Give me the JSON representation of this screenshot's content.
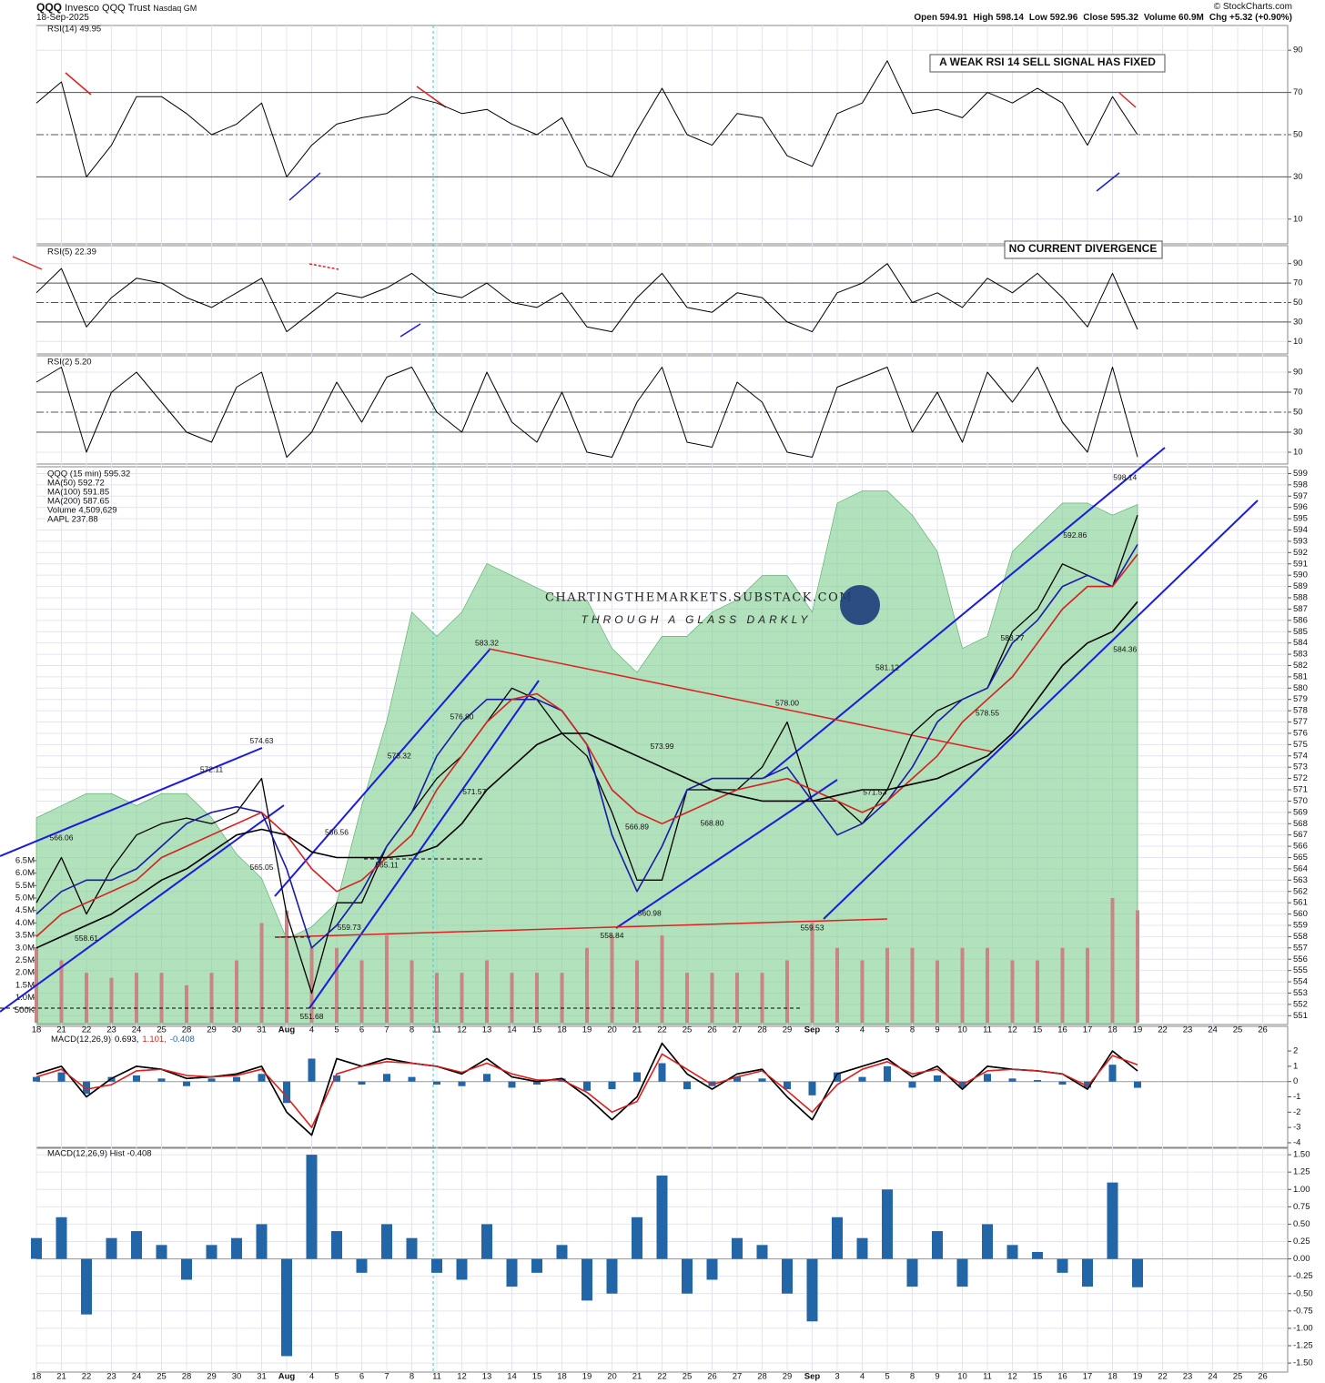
{
  "header": {
    "symbol": "QQQ",
    "name": "Invesco QQQ Trust",
    "exchange": "Nasdaq GM",
    "date": "18-Sep-2025",
    "quote": [
      "Open 594.91",
      "High 598.14",
      "Low 592.96",
      "Close 595.32",
      "Volume 60.9M",
      "Chg +5.32 (+0.90%)"
    ],
    "credit": "© StockCharts.com"
  },
  "annotations": {
    "rsi14_note": "A WEAK RSI 14 SELL SIGNAL HAS FIXED",
    "rsi5_note": "NO CURRENT DIVERGENCE",
    "watermark_title": "CHARTINGTHEMARKETS.SUBSTACK.COM",
    "watermark_subtitle": "THROUGH A GLASS DARKLY"
  },
  "chart_data": [
    {
      "type": "line",
      "title": "RSI(14) 49.95",
      "color": "#000000",
      "ylim": [
        0,
        100
      ],
      "yticks": [
        10,
        30,
        50,
        70,
        90
      ],
      "bands": [
        30,
        70
      ],
      "midline": 50,
      "grid": true,
      "values": [
        65,
        75,
        30,
        45,
        68,
        68,
        60,
        50,
        55,
        65,
        30,
        45,
        55,
        58,
        60,
        68,
        65,
        60,
        62,
        55,
        50,
        58,
        35,
        30,
        52,
        72,
        50,
        45,
        60,
        58,
        40,
        35,
        60,
        65,
        85,
        60,
        62,
        58,
        70,
        65,
        72,
        65,
        45,
        68,
        49.95,
        null,
        null,
        null,
        null,
        null
      ]
    },
    {
      "type": "line",
      "title": "RSI(5) 22.39",
      "color": "#000000",
      "ylim": [
        0,
        100
      ],
      "yticks": [
        10,
        30,
        50,
        70,
        90
      ],
      "bands": [
        30,
        70
      ],
      "midline": 50,
      "grid": true,
      "values": [
        60,
        85,
        25,
        55,
        75,
        70,
        55,
        45,
        60,
        75,
        20,
        40,
        60,
        55,
        65,
        80,
        60,
        55,
        70,
        50,
        45,
        60,
        25,
        20,
        55,
        80,
        45,
        40,
        60,
        55,
        30,
        20,
        60,
        70,
        90,
        50,
        60,
        45,
        75,
        60,
        80,
        55,
        25,
        80,
        22.39,
        null,
        null,
        null,
        null,
        null
      ]
    },
    {
      "type": "line",
      "title": "RSI(2) 5.20",
      "color": "#000000",
      "ylim": [
        0,
        100
      ],
      "yticks": [
        10,
        30,
        50,
        70,
        90
      ],
      "bands": [
        30,
        70
      ],
      "midline": 50,
      "grid": true,
      "values": [
        80,
        95,
        10,
        70,
        90,
        60,
        30,
        20,
        75,
        90,
        5,
        30,
        80,
        40,
        85,
        95,
        50,
        30,
        90,
        40,
        20,
        70,
        10,
        5,
        60,
        95,
        20,
        15,
        80,
        60,
        10,
        5,
        75,
        85,
        95,
        30,
        70,
        20,
        90,
        60,
        95,
        40,
        10,
        95,
        5.2,
        null,
        null,
        null,
        null,
        null
      ]
    },
    {
      "type": "line",
      "grid": true,
      "ylim": [
        550.3,
        599.6
      ],
      "yticks": [
        551,
        552,
        553,
        554,
        555,
        556,
        557,
        558,
        559,
        560,
        561,
        562,
        563,
        564,
        565,
        566,
        567,
        568,
        569,
        570,
        571,
        572,
        573,
        574,
        575,
        576,
        577,
        578,
        579,
        580,
        581,
        582,
        583,
        584,
        585,
        586,
        587,
        588,
        589,
        590,
        591,
        592,
        593,
        594,
        595,
        596,
        597,
        598,
        599
      ],
      "categories": [
        "18",
        "21",
        "22",
        "23",
        "24",
        "25",
        "28",
        "29",
        "30",
        "31",
        "Aug",
        "4",
        "5",
        "6",
        "7",
        "8",
        "11",
        "12",
        "13",
        "14",
        "15",
        "18",
        "19",
        "20",
        "21",
        "22",
        "25",
        "26",
        "27",
        "28",
        "29",
        "Sep",
        "3",
        "4",
        "5",
        "8",
        "9",
        "10",
        "11",
        "12",
        "15",
        "16",
        "17",
        "18",
        "19",
        "22",
        "23",
        "24",
        "25",
        "26"
      ],
      "series": [
        {
          "name": "QQQ (15 min) 595.32",
          "color": "#000000",
          "values": [
            561,
            565,
            560,
            564,
            567,
            568,
            568.5,
            568,
            569,
            572,
            560,
            553,
            561,
            561,
            566,
            569,
            572,
            574,
            577,
            580,
            579,
            576,
            574,
            569,
            563,
            563,
            571,
            571,
            571,
            573,
            577,
            570,
            570,
            568,
            571,
            576,
            578,
            579,
            580,
            585,
            587,
            591,
            590,
            589,
            595.32,
            null,
            null,
            null,
            null,
            null
          ]
        },
        {
          "name": "MA(50) 592.72",
          "color": "#1a1aa6",
          "values": [
            560,
            562,
            563,
            563,
            564,
            566,
            568,
            569,
            569.5,
            569,
            564,
            557,
            559,
            562,
            566,
            569,
            574,
            577,
            579,
            579,
            579,
            578,
            575,
            567,
            562,
            566,
            571,
            572,
            572,
            572,
            573,
            570,
            567,
            568,
            570,
            573,
            577,
            579,
            580,
            584,
            586,
            589,
            590,
            589,
            592.72,
            null,
            null,
            null,
            null,
            null
          ]
        },
        {
          "name": "MA(100) 591.85",
          "color": "#d42020",
          "values": [
            558,
            560,
            561,
            562,
            563,
            565,
            566,
            567,
            568,
            569,
            567,
            564,
            562,
            563,
            565,
            567,
            571,
            574,
            577,
            579,
            579.5,
            578,
            575,
            571,
            569,
            568,
            569,
            570,
            571,
            571.5,
            572,
            571,
            570,
            569,
            570,
            572,
            574,
            577,
            579,
            581,
            584,
            587,
            589,
            589,
            591.85,
            null,
            null,
            null,
            null,
            null
          ]
        },
        {
          "name": "MA(200) 587.65",
          "color": "#000000",
          "values": [
            557,
            558,
            559,
            560,
            561.5,
            563,
            564,
            565.5,
            567,
            567.5,
            567,
            565.5,
            565,
            565,
            565,
            565.2,
            566,
            568,
            571,
            573,
            575,
            576,
            576,
            575,
            574,
            573,
            572,
            571,
            570.5,
            570,
            570,
            570,
            570.5,
            571,
            571,
            571.5,
            572,
            573,
            574,
            576,
            579,
            582,
            584,
            585,
            587.65,
            null,
            null,
            null,
            null,
            null
          ]
        }
      ],
      "price_labels": [
        566.06,
        572.11,
        574.63,
        565.05,
        558.61,
        566.56,
        565.11,
        559.73,
        551.68,
        573.32,
        {
          "value": 576.8,
          "label": "576.80"
        },
        571.57,
        583.32,
        566.89,
        560.98,
        558.84,
        573.99,
        {
          "value": 568.8,
          "label": "568.80"
        },
        {
          "value": 578,
          "label": "578.00"
        },
        559.53,
        581.12,
        571.53,
        583.77,
        578.55,
        592.86,
        598.14,
        584.36
      ]
    },
    {
      "type": "bar",
      "name": "Volume 4,509,629",
      "color": "#c98585",
      "ylim": [
        0,
        22300000
      ],
      "yticks": [
        {
          "value": 500000,
          "label": "500K"
        },
        {
          "value": 1000000,
          "label": "1.0M"
        },
        {
          "value": 1500000,
          "label": "1.5M"
        },
        {
          "value": 2000000,
          "label": "2.0M"
        },
        {
          "value": 2500000,
          "label": "2.5M"
        },
        {
          "value": 3000000,
          "label": "3.0M"
        },
        {
          "value": 3500000,
          "label": "3.5M"
        },
        {
          "value": 4000000,
          "label": "4.0M"
        },
        {
          "value": 4500000,
          "label": "4.5M"
        },
        {
          "value": 5000000,
          "label": "5.0M"
        },
        {
          "value": 5500000,
          "label": "5.5M"
        },
        {
          "value": 6000000,
          "label": "6.0M"
        },
        {
          "value": 6500000,
          "label": "6.5M"
        }
      ],
      "values": [
        3000000,
        2500000,
        2000000,
        1800000,
        2000000,
        2000000,
        1500000,
        2000000,
        2500000,
        4000000,
        4500000,
        3000000,
        3000000,
        2500000,
        3500000,
        2500000,
        2000000,
        2000000,
        2500000,
        2000000,
        2000000,
        2000000,
        3000000,
        3500000,
        2500000,
        3500000,
        2000000,
        2000000,
        2000000,
        2000000,
        2500000,
        4000000,
        3000000,
        2500000,
        3000000,
        3000000,
        2500000,
        3000000,
        3000000,
        2500000,
        2500000,
        3000000,
        3000000,
        5000000,
        4509629,
        null,
        null,
        null,
        null,
        null
      ]
    },
    {
      "type": "area",
      "name": "AAPL 237.88",
      "color": "#7fcf8f",
      "ylim": [
        195,
        241
      ],
      "values": [
        212,
        213,
        214,
        214,
        213,
        214,
        214,
        212,
        209,
        207,
        202,
        203,
        205,
        213,
        220,
        229,
        227,
        229,
        233,
        232,
        231,
        230,
        230,
        226,
        224,
        227,
        227,
        229,
        230,
        232,
        232,
        229,
        238,
        239,
        239,
        237,
        234,
        226,
        227,
        234,
        236,
        238,
        238,
        237,
        237.88,
        null,
        null,
        null,
        null,
        null
      ]
    },
    {
      "type": "line",
      "title": "MACD(12,26,9)",
      "hist_label": "-0.408",
      "ylim": [
        -4.24,
        3.49
      ],
      "yticks": [
        -4,
        -3,
        -2,
        -1,
        0,
        1,
        2
      ],
      "series": [
        {
          "name": "0.693,",
          "color": "#000000",
          "values": [
            0.5,
            1,
            -1,
            0.2,
            1,
            0.8,
            0.2,
            0.3,
            0.5,
            1,
            -2,
            -3.5,
            1.5,
            1,
            1.5,
            1.2,
            1,
            0.5,
            1.5,
            0.3,
            0,
            0.2,
            -1,
            -2.5,
            -1,
            2.5,
            0.5,
            -0.5,
            0.5,
            0.8,
            -1,
            -2.5,
            0.5,
            1,
            1.5,
            0.3,
            1,
            -0.5,
            1,
            0.8,
            0.7,
            0.5,
            -0.5,
            2,
            0.693,
            null,
            null,
            null,
            null,
            null
          ]
        },
        {
          "name": "1.101,",
          "color": "#e02020",
          "values": [
            0.3,
            0.8,
            -0.5,
            -0.2,
            0.7,
            0.8,
            0.4,
            0.3,
            0.4,
            0.8,
            -1,
            -3,
            0.5,
            1,
            1.3,
            1.2,
            1,
            0.6,
            1.2,
            0.5,
            0.1,
            0.1,
            -0.7,
            -2,
            -1.3,
            1.8,
            0.8,
            -0.2,
            0.3,
            0.7,
            -0.6,
            -2,
            -0.2,
            0.8,
            1.3,
            0.5,
            0.8,
            -0.2,
            0.7,
            0.8,
            0.7,
            0.5,
            -0.3,
            1.7,
            1.101,
            null,
            null,
            null,
            null,
            null
          ]
        }
      ]
    },
    {
      "type": "bar",
      "title": "MACD(12,26,9) Hist -0.408",
      "color": "#2266a8",
      "grid": true,
      "ylim": [
        -1.63,
        1.58
      ],
      "yticks": [
        {
          "value": 1.5,
          "label": "1.50"
        },
        1.25,
        {
          "value": 1,
          "label": "1.00"
        },
        0.75,
        {
          "value": 0.5,
          "label": "0.50"
        },
        0.25,
        {
          "value": 0,
          "label": "0.00"
        },
        -0.25,
        {
          "value": -0.5,
          "label": "-0.50"
        },
        -0.75,
        {
          "value": -1,
          "label": "-1.00"
        },
        -1.25,
        {
          "value": -1.5,
          "label": "-1.50"
        }
      ],
      "categories": [
        "18",
        "21",
        "22",
        "23",
        "24",
        "25",
        "28",
        "29",
        "30",
        "31",
        "Aug",
        "4",
        "5",
        "6",
        "7",
        "8",
        "11",
        "12",
        "13",
        "14",
        "15",
        "18",
        "19",
        "20",
        "21",
        "22",
        "25",
        "26",
        "27",
        "28",
        "29",
        "Sep",
        "3",
        "4",
        "5",
        "8",
        "9",
        "10",
        "11",
        "12",
        "15",
        "16",
        "17",
        "18",
        "19",
        "22",
        "23",
        "24",
        "25",
        "26"
      ],
      "values": [
        0.3,
        0.6,
        -0.8,
        0.3,
        0.4,
        0.2,
        -0.3,
        0.2,
        0.3,
        0.5,
        -1.4,
        1.5,
        0.4,
        -0.2,
        0.5,
        0.3,
        -0.2,
        -0.3,
        0.5,
        -0.4,
        -0.2,
        0.2,
        -0.6,
        -0.5,
        0.6,
        1.2,
        -0.5,
        -0.3,
        0.3,
        0.2,
        -0.5,
        -0.9,
        0.6,
        0.3,
        1,
        -0.4,
        0.4,
        -0.4,
        0.5,
        0.2,
        0.1,
        -0.2,
        -0.4,
        1.1,
        -0.408,
        null,
        null,
        null,
        null,
        null
      ]
    }
  ]
}
